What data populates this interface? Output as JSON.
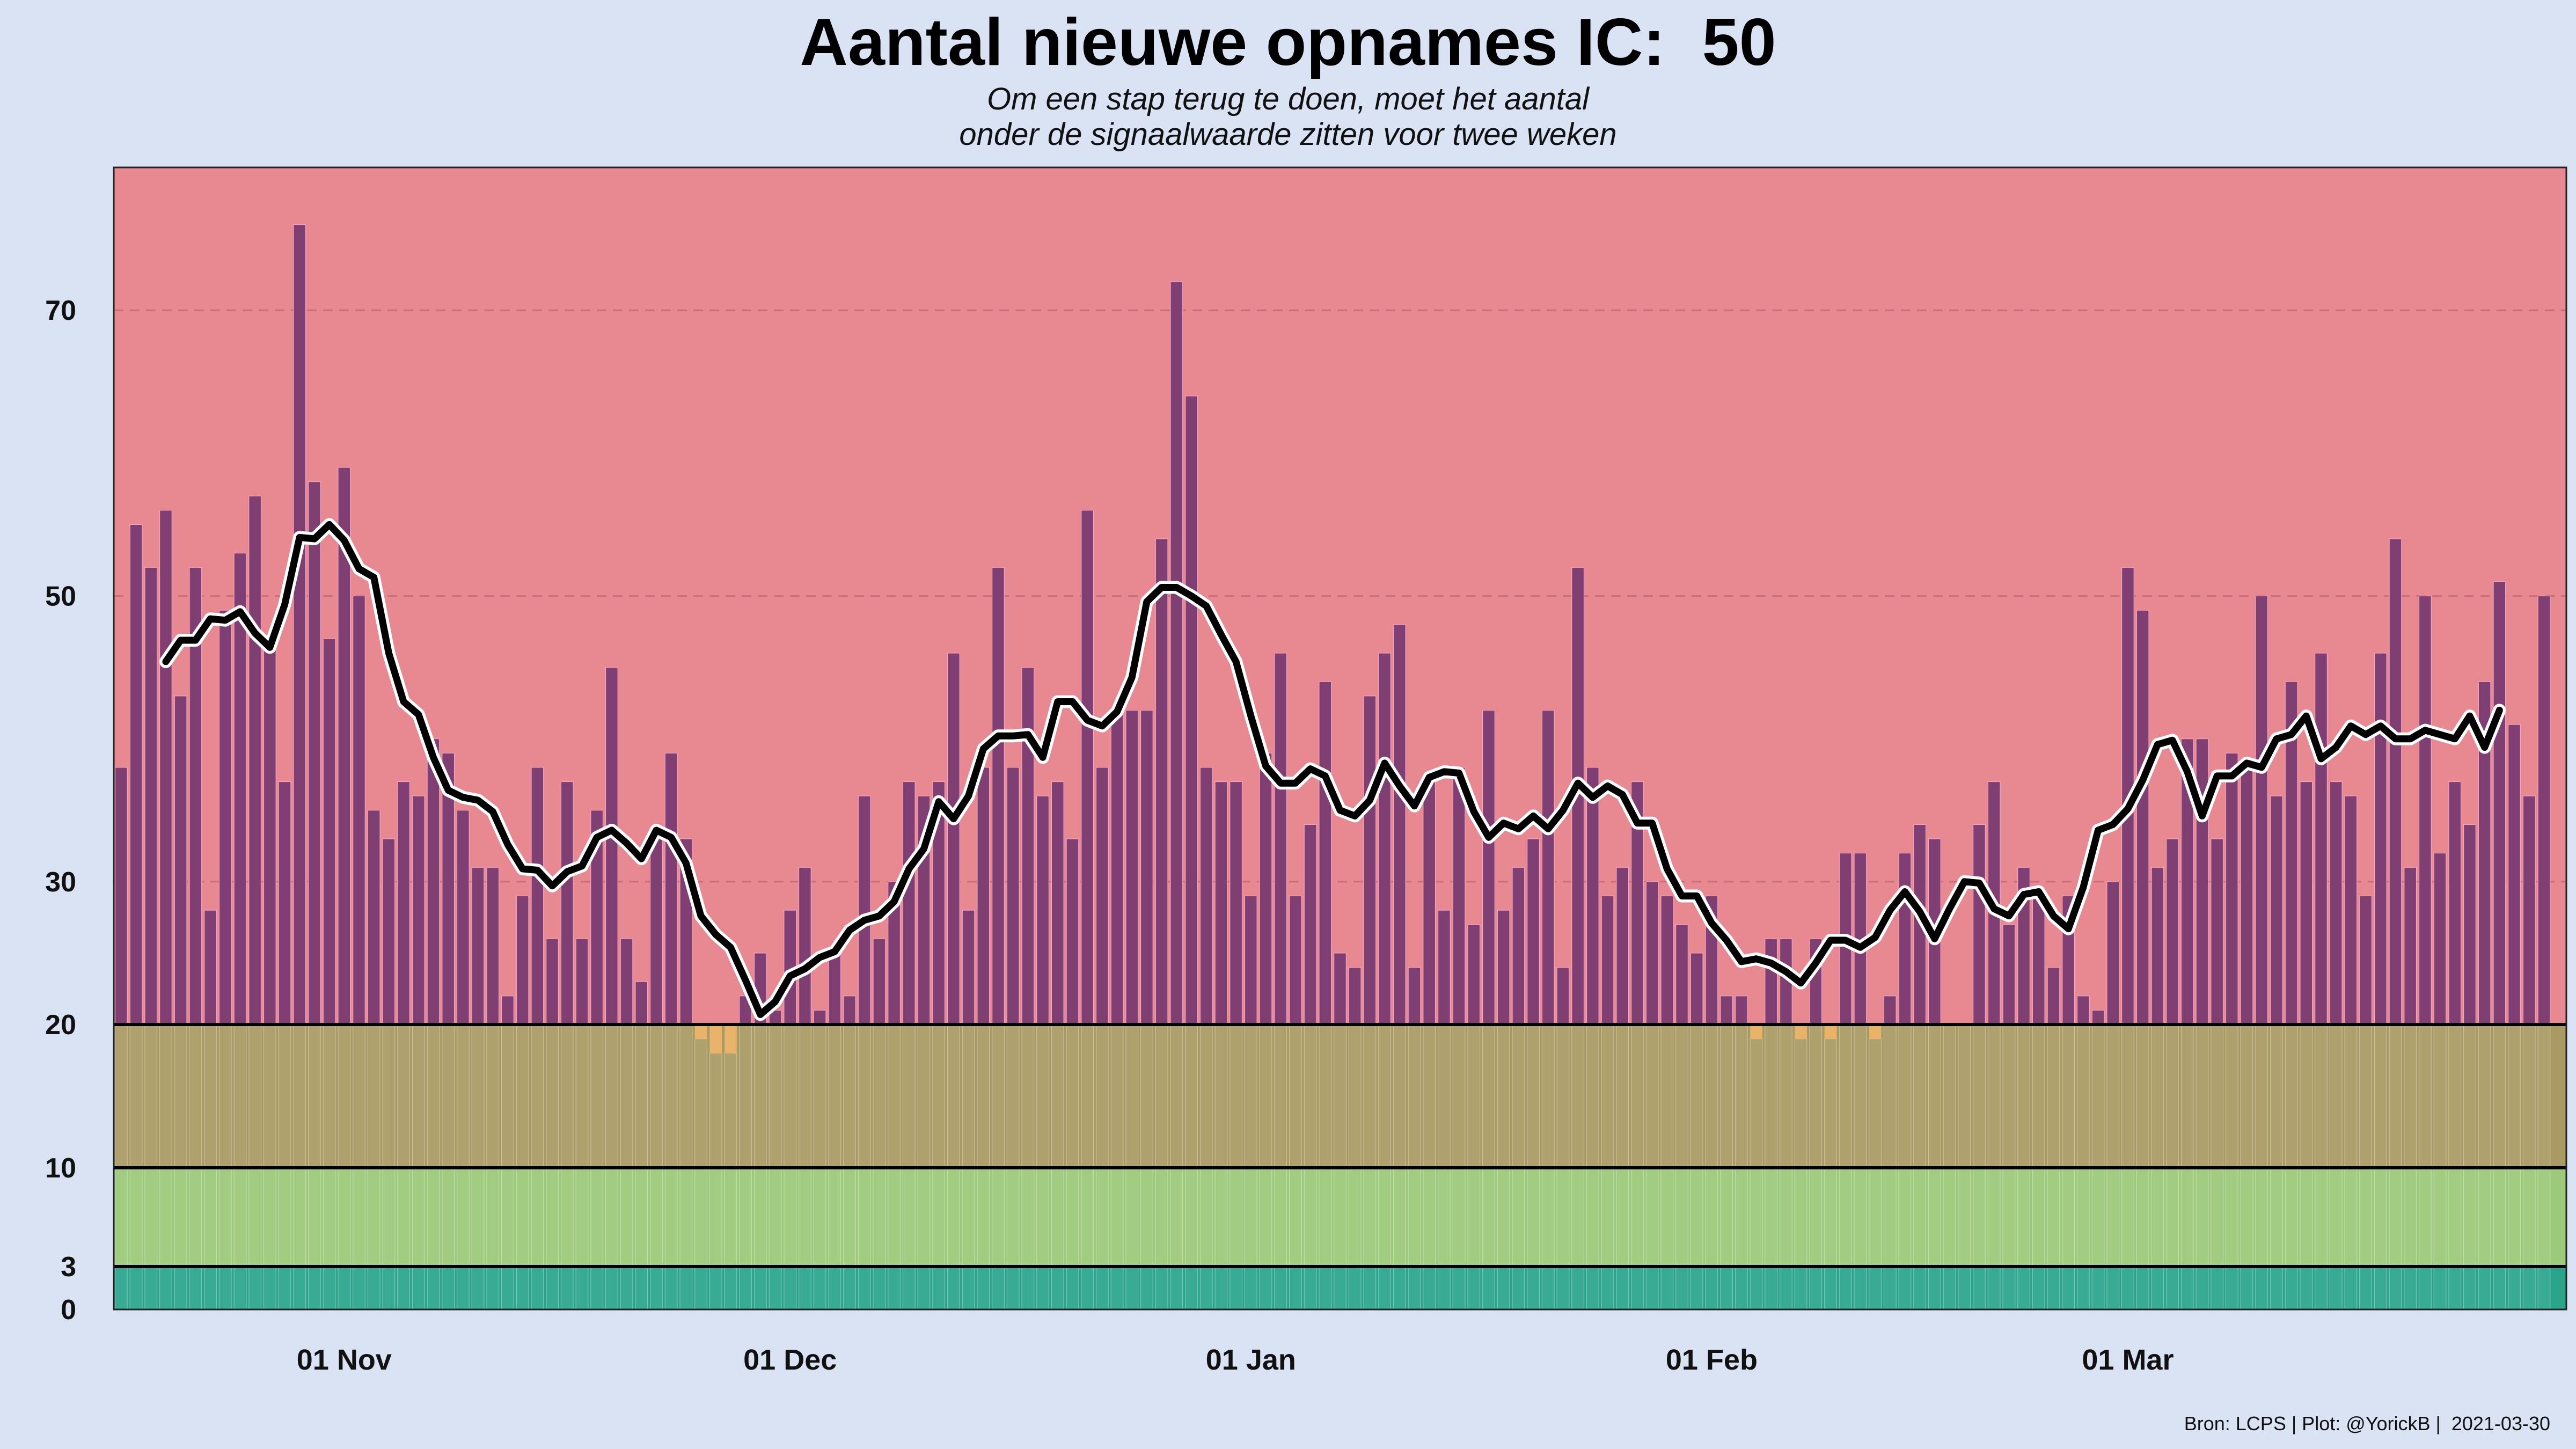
{
  "chart_data": {
    "type": "bar",
    "title": "Aantal nieuwe opnames IC:  50",
    "subtitle": [
      "Om een stap terug te doen, moet het aantal",
      "onder de signaalwaarde zitten voor twee weken"
    ],
    "caption": "Bron: LCPS | Plot: @YorickB |  2021-03-30",
    "x_start": "2020-10-17",
    "x_end": "2021-03-30",
    "x_ticks": [
      {
        "date": "2020-11-01",
        "label": "01 Nov"
      },
      {
        "date": "2020-12-01",
        "label": "01 Dec"
      },
      {
        "date": "2021-01-01",
        "label": "01 Jan"
      },
      {
        "date": "2021-02-01",
        "label": "01 Feb"
      },
      {
        "date": "2021-03-01",
        "label": "01 Mar"
      }
    ],
    "y_axis": {
      "scale": "piecewise",
      "breakpoints": [
        0,
        3,
        10,
        20,
        80
      ],
      "ticks": [
        0,
        3,
        10,
        20,
        30,
        50,
        70
      ]
    },
    "grid": "dashed lines at 30, 50, 70",
    "bands": [
      {
        "from": 0,
        "to": 3,
        "color": "#2aa58c"
      },
      {
        "from": 3,
        "to": 10,
        "color": "#9cc97a"
      },
      {
        "from": 10,
        "to": 20,
        "color": "#a89a62"
      },
      {
        "from": 20,
        "to": 80,
        "color": "#e88891"
      }
    ],
    "colors": {
      "bars_above": "#7f3f72",
      "bars_below": "#eab36a",
      "bar_outline": "#f2a6c2",
      "avg_line": "#000000"
    },
    "series": [
      {
        "type": "bar",
        "values": [
          38,
          55,
          52,
          56,
          43,
          52,
          28,
          49,
          53,
          57,
          47,
          37,
          76,
          58,
          47,
          59,
          50,
          35,
          33,
          37,
          36,
          40,
          39,
          35,
          31,
          31,
          22,
          29,
          38,
          26,
          37,
          26,
          35,
          45,
          26,
          23,
          33,
          39,
          33,
          19,
          18,
          18,
          22,
          25,
          21,
          28,
          31,
          21,
          25,
          22,
          36,
          26,
          30,
          37,
          36,
          37,
          46,
          28,
          38,
          52,
          38,
          45,
          36,
          37,
          33,
          56,
          38,
          42,
          42,
          42,
          54,
          72,
          64,
          38,
          37,
          37,
          29,
          39,
          46,
          29,
          34,
          44,
          25,
          24,
          43,
          46,
          48,
          24,
          37,
          28,
          38,
          27,
          42,
          28,
          31,
          33,
          42,
          24,
          52,
          38,
          29,
          31,
          37,
          30,
          29,
          27,
          25,
          29,
          22,
          22,
          19,
          26,
          26,
          19,
          26,
          19,
          32,
          32,
          19,
          22,
          32,
          34,
          33,
          20,
          20,
          34,
          37,
          27,
          31,
          29,
          24,
          29,
          22,
          21,
          30,
          52,
          49,
          31,
          33,
          40,
          40,
          33,
          39,
          38,
          50,
          36,
          44,
          37,
          46,
          37,
          36,
          29,
          46,
          54,
          31,
          50,
          32,
          37,
          34,
          44,
          51,
          41,
          36,
          50
        ]
      },
      {
        "type": "line",
        "name": "",
        "values": [
          null,
          null,
          null,
          45.4,
          46.9,
          46.9,
          48.4,
          48.3,
          48.9,
          47.4,
          46.4,
          49.4,
          54.1,
          54.0,
          55.0,
          53.9,
          51.9,
          51.3,
          46.0,
          42.6,
          41.7,
          38.7,
          36.4,
          35.9,
          35.7,
          34.9,
          32.6,
          30.9,
          30.8,
          29.7,
          30.7,
          31.1,
          33.1,
          33.6,
          32.7,
          31.6,
          33.6,
          33.1,
          31.3,
          27.6,
          26.3,
          25.4,
          23.1,
          20.7,
          21.6,
          23.4,
          23.9,
          24.7,
          25.1,
          26.6,
          27.3,
          27.6,
          28.6,
          30.9,
          32.3,
          35.6,
          34.4,
          36.0,
          39.3,
          40.2,
          40.2,
          40.3,
          38.7,
          42.6,
          42.6,
          41.3,
          40.9,
          41.9,
          44.3,
          49.6,
          50.6,
          50.6,
          50.0,
          49.3,
          47.3,
          45.4,
          41.6,
          38.1,
          36.9,
          36.9,
          37.9,
          37.4,
          35.0,
          34.6,
          35.7,
          38.3,
          36.7,
          35.3,
          37.3,
          37.7,
          37.6,
          34.9,
          33.1,
          34.1,
          33.7,
          34.6,
          33.7,
          35.0,
          36.9,
          35.9,
          36.7,
          36.1,
          34.1,
          34.1,
          30.9,
          29.0,
          29.0,
          27.1,
          25.9,
          24.4,
          24.6,
          24.3,
          23.7,
          22.9,
          24.3,
          25.9,
          25.9,
          25.4,
          26.1,
          28.0,
          29.3,
          27.9,
          26.0,
          28.1,
          30.0,
          29.9,
          28.1,
          27.6,
          29.1,
          29.3,
          27.6,
          26.7,
          29.6,
          33.6,
          34.0,
          35.1,
          37.1,
          39.6,
          39.9,
          37.7,
          34.6,
          37.4,
          37.4,
          38.3,
          38.0,
          40.0,
          40.3,
          41.6,
          38.6,
          39.4,
          40.9,
          40.3,
          40.9,
          40.0,
          40.0,
          40.6,
          40.3,
          40.0,
          41.6,
          39.4,
          42.0,
          null,
          null
        ]
      }
    ]
  }
}
